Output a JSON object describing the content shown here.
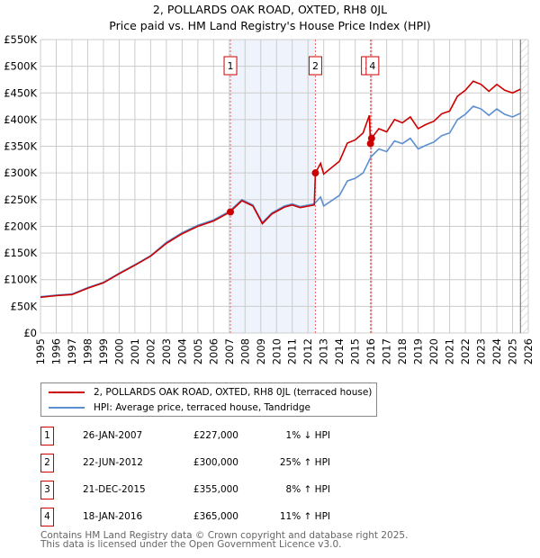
{
  "chart_data": {
    "type": "line",
    "title": "2, POLLARDS OAK ROAD, OXTED, RH8 0JL",
    "subtitle": "Price paid vs. HM Land Registry's House Price Index (HPI)",
    "xlim": [
      1995,
      2026
    ],
    "ylim": [
      0,
      550000
    ],
    "y_ticks": [
      "£0",
      "£50K",
      "£100K",
      "£150K",
      "£200K",
      "£250K",
      "£300K",
      "£350K",
      "£400K",
      "£450K",
      "£500K",
      "£550K"
    ],
    "x_ticks": [
      "1995",
      "1996",
      "1997",
      "1998",
      "1999",
      "2000",
      "2001",
      "2002",
      "2003",
      "2004",
      "2005",
      "2006",
      "2007",
      "2008",
      "2009",
      "2010",
      "2011",
      "2012",
      "2013",
      "2014",
      "2015",
      "2016",
      "2017",
      "2018",
      "2019",
      "2020",
      "2021",
      "2022",
      "2023",
      "2024",
      "2025",
      "2026"
    ],
    "grid": true,
    "series": [
      {
        "name": "2, POLLARDS OAK ROAD, OXTED, RH8 0JL (terraced house)",
        "color": "#cc0000",
        "x": [
          1995,
          1996,
          1997,
          1998,
          1999,
          2000,
          2001,
          2002,
          2003,
          2004,
          2005,
          2006,
          2007,
          2007.8,
          2008.5,
          2009.1,
          2009.7,
          2010.5,
          2011,
          2011.5,
          2012.4,
          2012.47,
          2012.8,
          2013,
          2014,
          2014.5,
          2015,
          2015.5,
          2015.9,
          2015.97,
          2016.04,
          2016.5,
          2017,
          2017.5,
          2018,
          2018.5,
          2019,
          2019.5,
          2020,
          2020.5,
          2021,
          2021.5,
          2022,
          2022.5,
          2023,
          2023.5,
          2024,
          2024.5,
          2025,
          2025.5
        ],
        "y": [
          67,
          70,
          72,
          84,
          94,
          111,
          127,
          144,
          168,
          186,
          200,
          210,
          226,
          248,
          238,
          205,
          223,
          236,
          240,
          235,
          240,
          300,
          318,
          298,
          322,
          356,
          362,
          375,
          408,
          355,
          365,
          383,
          377,
          400,
          394,
          405,
          383,
          391,
          397,
          411,
          416,
          444,
          455,
          472,
          466,
          453,
          466,
          455,
          450,
          457
        ]
      },
      {
        "name": "HPI: Average price, terraced house, Tandridge",
        "color": "#5b8fd0",
        "x": [
          1995,
          1996,
          1997,
          1998,
          1999,
          2000,
          2001,
          2002,
          2003,
          2004,
          2005,
          2006,
          2007,
          2007.8,
          2008.5,
          2009.1,
          2009.7,
          2010.5,
          2011,
          2011.5,
          2012.4,
          2012.8,
          2013,
          2014,
          2014.5,
          2015,
          2015.5,
          2016,
          2016.5,
          2017,
          2017.5,
          2018,
          2018.5,
          2019,
          2019.5,
          2020,
          2020.5,
          2021,
          2021.5,
          2022,
          2022.5,
          2023,
          2023.5,
          2024,
          2024.5,
          2025,
          2025.5
        ],
        "y": [
          68,
          71,
          73,
          85,
          95,
          112,
          128,
          145,
          170,
          188,
          202,
          212,
          228,
          250,
          240,
          207,
          225,
          238,
          242,
          237,
          242,
          255,
          238,
          258,
          285,
          290,
          300,
          330,
          345,
          340,
          360,
          355,
          365,
          345,
          352,
          358,
          370,
          375,
          400,
          410,
          425,
          420,
          408,
          420,
          410,
          405,
          412
        ]
      }
    ],
    "y_unit": "thousands GBP",
    "sales": [
      {
        "id": "1",
        "x": 2007.07,
        "price": 227
      },
      {
        "id": "2",
        "x": 2012.47,
        "price": 300
      },
      {
        "id": "3",
        "x": 2015.97,
        "price": 355
      },
      {
        "id": "4",
        "x": 2016.04,
        "price": 365
      }
    ],
    "shaded_range": [
      2007.07,
      2012.47
    ],
    "hatched_from": 2025.5
  },
  "legend": {
    "property": "2, POLLARDS OAK ROAD, OXTED, RH8 0JL (terraced house)",
    "hpi": "HPI: Average price, terraced house, Tandridge"
  },
  "table": [
    {
      "num": "1",
      "date": "26-JAN-2007",
      "price": "£227,000",
      "diff": "1% ↓ HPI"
    },
    {
      "num": "2",
      "date": "22-JUN-2012",
      "price": "£300,000",
      "diff": "25% ↑ HPI"
    },
    {
      "num": "3",
      "date": "21-DEC-2015",
      "price": "£355,000",
      "diff": "8% ↑ HPI"
    },
    {
      "num": "4",
      "date": "18-JAN-2016",
      "price": "£365,000",
      "diff": "11% ↑ HPI"
    }
  ],
  "footer": {
    "line1": "Contains HM Land Registry data © Crown copyright and database right 2025.",
    "line2": "This data is licensed under the Open Government Licence v3.0."
  }
}
